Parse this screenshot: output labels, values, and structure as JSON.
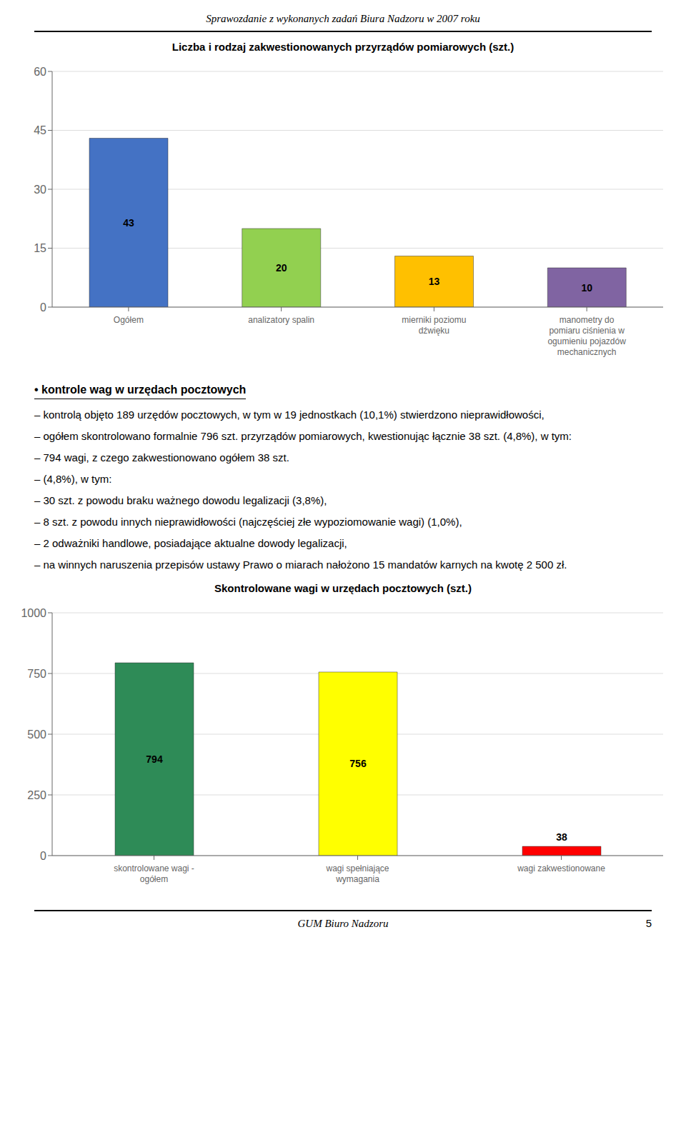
{
  "annotations": [
    "Sprawozdanie z wykonanych zadań Biura Nadzoru w 2007 roku",
    "GUM Biuro Nadzoru",
    "5"
  ],
  "chart_data": [
    {
      "type": "bar",
      "title": "Liczba i rodzaj zakwestionowanych przyrządów pomiarowych (szt.)",
      "categories": [
        "Ogółem",
        "analizatory spalin",
        "mierniki poziomu\ndźwięku",
        "manometry do\npomiaru ciśnienia w\nogumieniu pojazdów\nmechanicznych"
      ],
      "values": [
        43,
        20,
        13,
        10
      ],
      "colors": [
        "#4472C4",
        "#92D050",
        "#FFC000",
        "#8064A2"
      ],
      "ylim": [
        0,
        60
      ],
      "yticks": [
        0,
        15,
        30,
        45,
        60
      ],
      "grid": true,
      "data_labels": true,
      "annotations": [
        "• kontrole wag w urzędach pocztowych",
        "– kontrolą objęto 189 urzędów pocztowych, w tym w 19 jednostkach (10,1%) stwierdzono nieprawidłowości,",
        "– ogółem skontrolowano formalnie 796 szt. przyrządów pomiarowych, kwestionując łącznie 38 szt. (4,8%), w tym:",
        "– 794 wagi, z czego zakwestionowano ogółem 38 szt.",
        "– (4,8%), w tym:",
        "– 30 szt. z powodu braku ważnego dowodu legalizacji (3,8%),",
        "– 8 szt. z powodu innych nieprawidłowości (najczęściej złe wypoziomowanie wagi) (1,0%),",
        "– 2 odważniki handlowe, posiadające aktualne dowody legalizacji,",
        "– na winnych naruszenia przepisów ustawy Prawo o miarach nałożono 15 mandatów karnych na kwotę 2 500 zł."
      ]
    },
    {
      "type": "bar",
      "title": "Skontrolowane wagi w urzędach pocztowych (szt.)",
      "categories": [
        "skontrolowane wagi -\nogółem",
        "wagi spełniające\nwymagania",
        "wagi zakwestionowane"
      ],
      "values": [
        794,
        756,
        38
      ],
      "colors": [
        "#2E8B57",
        "#FFFF00",
        "#FF0000"
      ],
      "ylim": [
        0,
        1000
      ],
      "yticks": [
        0,
        250,
        500,
        750,
        1000
      ],
      "grid": true,
      "data_labels": true
    }
  ]
}
